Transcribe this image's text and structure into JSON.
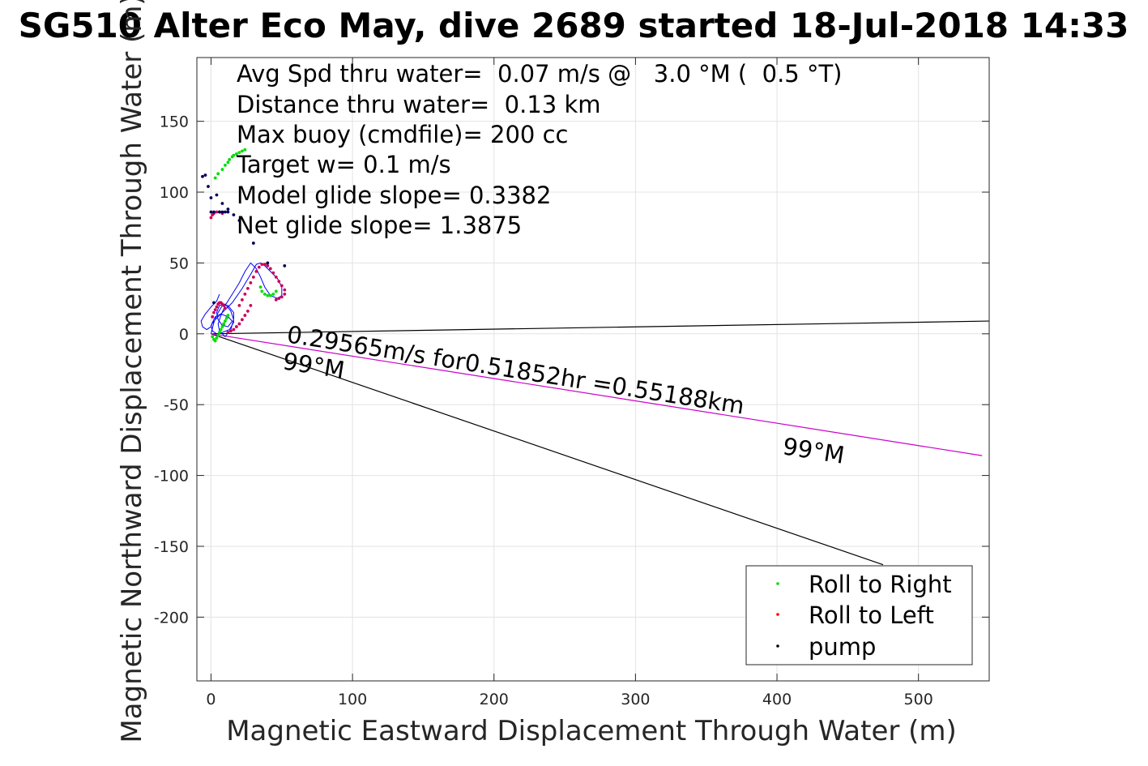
{
  "chart_data": {
    "type": "scatter",
    "title": "SG510 Alter Eco May, dive 2689 started 18-Jul-2018 14:33",
    "xlabel": "Magnetic Eastward Displacement Through Water (m)",
    "ylabel": "Magnetic Northward Displacement Through Water (m)",
    "xlim": [
      -10,
      550
    ],
    "ylim": [
      -245,
      195
    ],
    "xticks": [
      "0",
      "100",
      "200",
      "300",
      "400",
      "500"
    ],
    "xtick_values": [
      0,
      100,
      200,
      300,
      400,
      500
    ],
    "yticks": [
      "150",
      "100",
      "50",
      "0",
      "-50",
      "-100",
      "-150",
      "-200"
    ],
    "ytick_values": [
      150,
      100,
      50,
      0,
      -50,
      -100,
      -150,
      -200
    ],
    "grid": true,
    "legend_position": "bottom-right",
    "stats": [
      "Avg Spd thru water=  0.07 m/s @   3.0 °M (  0.5 °T)",
      "Distance thru water=  0.13 km",
      "Max buoy (cmdfile)= 200 cc",
      "Target w= 0.1 m/s",
      "Model glide slope= 0.3382",
      "Net glide slope= 1.3875"
    ],
    "annotations": {
      "current": "0.29565m/s for0.51852hr =0.55188km",
      "heading_near": "99°M",
      "heading_far": "99°M"
    },
    "reference_lines": [
      {
        "name": "heading-line-upper",
        "color": "#000000",
        "from": [
          0,
          0
        ],
        "to": [
          550,
          9
        ]
      },
      {
        "name": "heading-line-lower",
        "color": "#000000",
        "from": [
          0,
          0
        ],
        "to": [
          475,
          -163
        ]
      },
      {
        "name": "current-vector",
        "color": "#cc00cc",
        "from": [
          0,
          0
        ],
        "to": [
          545,
          -86
        ]
      }
    ],
    "track": {
      "color": "#0000ff",
      "x": [
        0,
        2,
        5,
        8,
        12,
        16,
        16,
        13,
        8,
        4,
        1,
        0,
        3,
        8,
        15,
        22,
        28,
        32,
        35,
        38,
        42,
        47,
        50,
        50,
        47,
        42,
        38,
        35,
        32,
        28,
        24,
        20,
        15,
        10,
        7,
        5,
        6,
        10,
        14,
        16,
        14,
        10,
        6,
        4,
        5,
        8,
        12,
        15,
        12,
        7,
        3,
        1,
        0,
        -3,
        -6,
        -7,
        -4,
        0,
        4,
        6
      ],
      "y": [
        0,
        8,
        15,
        20,
        20,
        15,
        8,
        3,
        1,
        0,
        2,
        6,
        10,
        15,
        22,
        32,
        42,
        49,
        50,
        48,
        44,
        39,
        33,
        27,
        25,
        27,
        33,
        40,
        46,
        50,
        44,
        36,
        28,
        20,
        13,
        7,
        2,
        -2,
        3,
        10,
        16,
        21,
        20,
        15,
        10,
        6,
        5,
        9,
        12,
        14,
        12,
        8,
        5,
        3,
        5,
        9,
        14,
        19,
        23,
        28
      ]
    },
    "series": [
      {
        "name": "Roll to Right",
        "color": "#00dd00",
        "x": [
          3,
          5,
          8,
          10,
          12,
          13,
          15,
          16,
          18,
          20,
          22,
          24,
          6,
          7,
          8,
          9,
          10,
          11,
          12,
          1,
          2,
          3,
          4,
          5,
          35,
          36,
          38,
          40,
          42,
          44,
          46
        ],
        "y": [
          110,
          113,
          116,
          119,
          121,
          123,
          125,
          126,
          127,
          128,
          129,
          130,
          1,
          3,
          5,
          7,
          9,
          11,
          13,
          -2,
          -4,
          -5,
          -3,
          -1,
          33,
          30,
          28,
          27,
          27,
          28,
          30
        ]
      },
      {
        "name": "Roll to Left",
        "color": "#cc0055",
        "x": [
          0,
          1,
          2,
          4,
          6,
          8,
          20,
          22,
          24,
          26,
          28,
          30,
          32,
          34,
          36,
          38,
          40,
          42,
          44,
          46,
          48,
          50,
          52,
          52,
          50,
          48,
          46,
          28,
          26,
          24,
          22,
          20,
          18,
          16,
          14,
          12,
          1,
          2,
          3,
          4,
          5,
          6,
          7,
          8,
          9,
          10
        ],
        "y": [
          82,
          84,
          85,
          86,
          86,
          85,
          20,
          24,
          28,
          32,
          36,
          40,
          44,
          47,
          49,
          49,
          48,
          46,
          43,
          40,
          37,
          34,
          31,
          28,
          26,
          25,
          24,
          20,
          16,
          13,
          10,
          7,
          5,
          3,
          2,
          1,
          12,
          15,
          17,
          19,
          21,
          22,
          22,
          21,
          20,
          18
        ]
      },
      {
        "name": "pump",
        "color": "#000055",
        "x": [
          -6,
          -4,
          -2,
          0,
          4,
          8,
          12,
          16,
          20,
          0,
          2,
          6,
          8,
          10,
          12,
          30,
          40,
          52,
          2
        ],
        "y": [
          111,
          112,
          104,
          96,
          98,
          92,
          88,
          84,
          80,
          86,
          86,
          86,
          86,
          86,
          86,
          64,
          50,
          48,
          22
        ]
      }
    ]
  }
}
